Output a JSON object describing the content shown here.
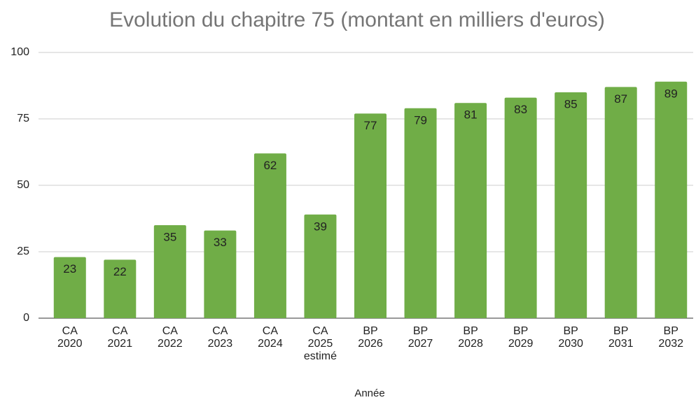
{
  "chart_data": {
    "type": "bar",
    "title": "Evolution du chapitre 75 (montant en milliers d'euros)",
    "x_label": "Année",
    "categories": [
      "CA\n2020",
      "CA\n2021",
      "CA\n2022",
      "CA\n2023",
      "CA\n2024",
      "CA\n2025\nestimé",
      "BP\n2026",
      "BP\n2027",
      "BP\n2028",
      "BP\n2029",
      "BP\n2030",
      "BP\n2031",
      "BP\n2032"
    ],
    "values": [
      23,
      22,
      35,
      33,
      62,
      39,
      77,
      79,
      81,
      83,
      85,
      87,
      89
    ],
    "color": "#70ad47",
    "ylim": [
      0,
      100
    ],
    "yticks": [
      0,
      25,
      50,
      75,
      100
    ],
    "grid": true
  }
}
